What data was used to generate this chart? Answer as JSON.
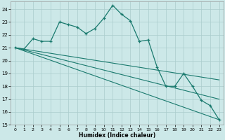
{
  "background_color": "#cce8e8",
  "grid_color": "#aacccc",
  "line_color": "#1a7a6e",
  "xlabel": "Humidex (Indice chaleur)",
  "xlim_min": -0.5,
  "xlim_max": 23.5,
  "ylim_min": 15,
  "ylim_max": 24.6,
  "yticks": [
    15,
    16,
    17,
    18,
    19,
    20,
    21,
    22,
    23,
    24
  ],
  "xticks": [
    0,
    1,
    2,
    3,
    4,
    5,
    6,
    7,
    8,
    9,
    10,
    11,
    12,
    13,
    14,
    15,
    16,
    17,
    18,
    19,
    20,
    21,
    22,
    23
  ],
  "main_x": [
    0,
    1,
    2,
    3,
    4,
    5,
    6,
    7,
    8,
    9,
    10,
    11,
    12,
    13,
    14,
    15,
    16,
    17,
    18,
    19,
    20,
    21,
    22,
    23
  ],
  "main_y": [
    21.0,
    20.9,
    21.7,
    21.5,
    21.5,
    23.0,
    22.8,
    22.6,
    22.1,
    22.5,
    23.3,
    24.3,
    23.6,
    23.1,
    21.5,
    21.6,
    19.5,
    18.0,
    18.0,
    19.0,
    18.0,
    16.9,
    16.5,
    15.4
  ],
  "line2_x": [
    0,
    23
  ],
  "line2_y": [
    21.0,
    17.0
  ],
  "line3_x": [
    0,
    23
  ],
  "line3_y": [
    21.0,
    18.5
  ],
  "line4_x": [
    0,
    23
  ],
  "line4_y": [
    21.0,
    15.4
  ]
}
